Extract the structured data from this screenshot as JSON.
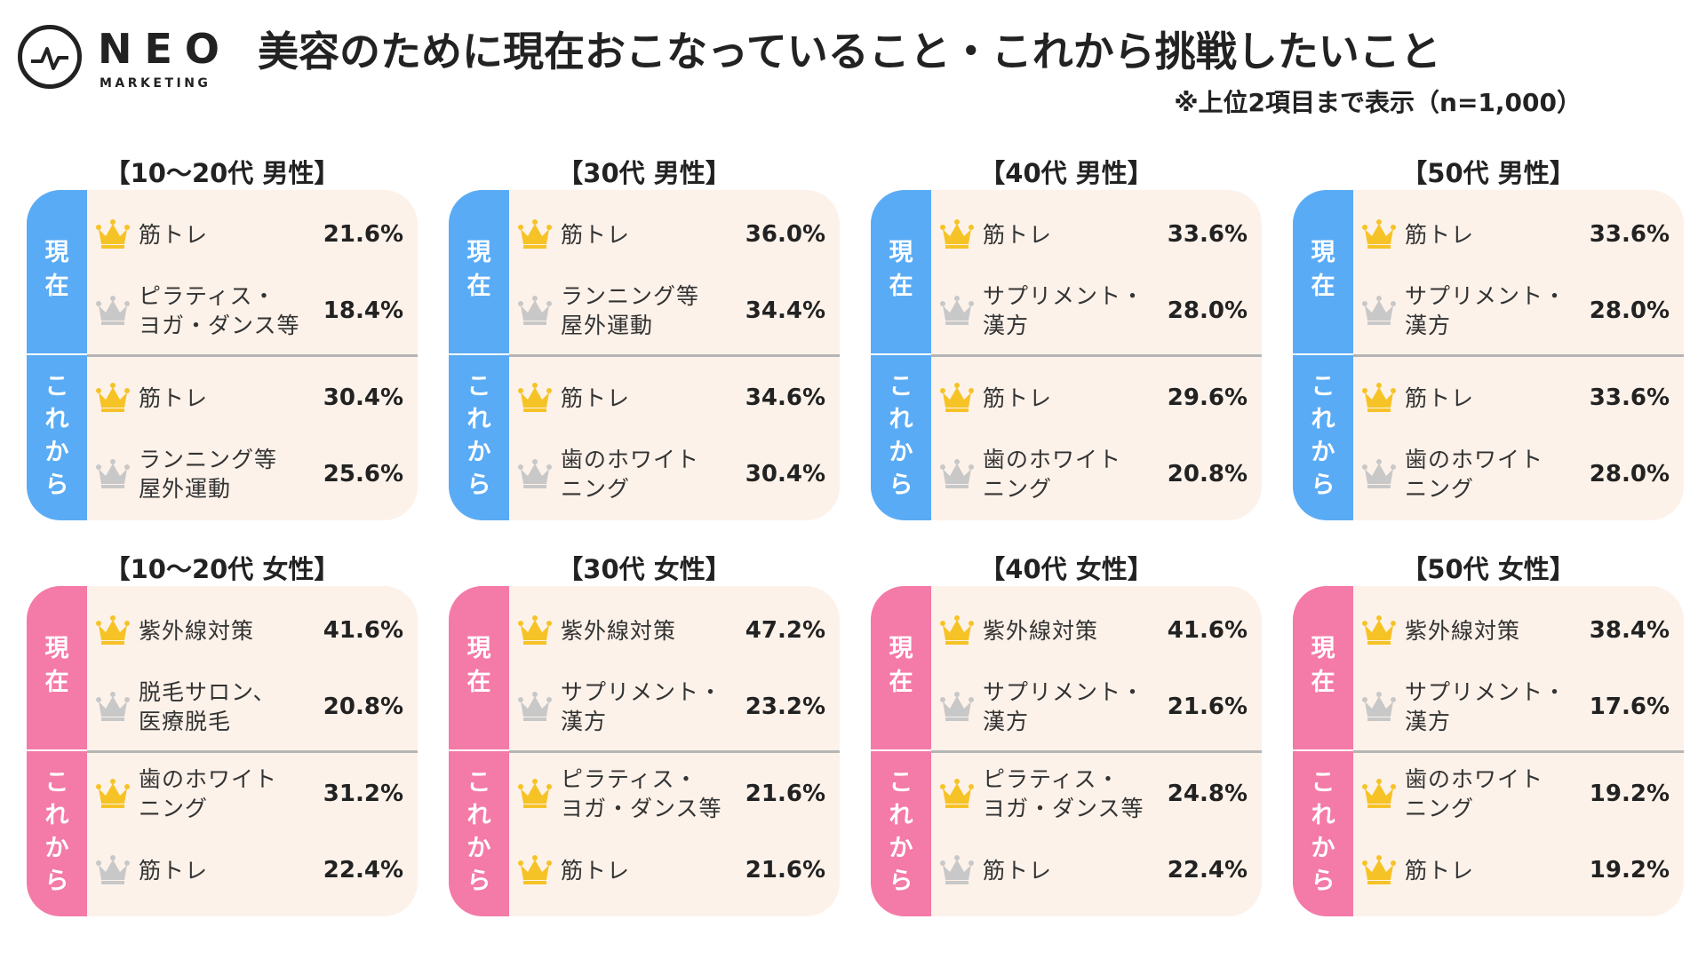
{
  "logo": {
    "main": "NEO",
    "sub": "MARKETING"
  },
  "title": "美容のために現在おこなっていること・これから挑戦したいこと",
  "note": "※上位2項目まで表示（n=1,000）",
  "labels": {
    "current": [
      "現",
      "在"
    ],
    "future": [
      "こ",
      "れ",
      "か",
      "ら"
    ]
  },
  "colors": {
    "male": "#5aabf5",
    "female": "#f47aa7",
    "card_bg": "#fdf2ea",
    "gold": "#f6c327",
    "silver": "#c8c8c8"
  },
  "chart_data": [
    {
      "type": "table",
      "title": "【10〜20代 男性】",
      "gender": "male",
      "current": [
        {
          "rank": 1,
          "item": "筋トレ",
          "value": "21.6%"
        },
        {
          "rank": 2,
          "item": "ピラティス・\nヨガ・ダンス等",
          "value": "18.4%"
        }
      ],
      "future": [
        {
          "rank": 1,
          "item": "筋トレ",
          "value": "30.4%"
        },
        {
          "rank": 2,
          "item": "ランニング等\n屋外運動",
          "value": "25.6%"
        }
      ]
    },
    {
      "type": "table",
      "title": "【30代 男性】",
      "gender": "male",
      "current": [
        {
          "rank": 1,
          "item": "筋トレ",
          "value": "36.0%"
        },
        {
          "rank": 2,
          "item": "ランニング等\n屋外運動",
          "value": "34.4%"
        }
      ],
      "future": [
        {
          "rank": 1,
          "item": "筋トレ",
          "value": "34.6%"
        },
        {
          "rank": 2,
          "item": "歯のホワイト\nニング",
          "value": "30.4%"
        }
      ]
    },
    {
      "type": "table",
      "title": "【40代 男性】",
      "gender": "male",
      "current": [
        {
          "rank": 1,
          "item": "筋トレ",
          "value": "33.6%"
        },
        {
          "rank": 2,
          "item": "サプリメント・\n漢方",
          "value": "28.0%"
        }
      ],
      "future": [
        {
          "rank": 1,
          "item": "筋トレ",
          "value": "29.6%"
        },
        {
          "rank": 2,
          "item": "歯のホワイト\nニング",
          "value": "20.8%"
        }
      ]
    },
    {
      "type": "table",
      "title": "【50代 男性】",
      "gender": "male",
      "current": [
        {
          "rank": 1,
          "item": "筋トレ",
          "value": "33.6%"
        },
        {
          "rank": 2,
          "item": "サプリメント・\n漢方",
          "value": "28.0%"
        }
      ],
      "future": [
        {
          "rank": 1,
          "item": "筋トレ",
          "value": "33.6%"
        },
        {
          "rank": 2,
          "item": "歯のホワイト\nニング",
          "value": "28.0%"
        }
      ]
    },
    {
      "type": "table",
      "title": "【10〜20代 女性】",
      "gender": "female",
      "current": [
        {
          "rank": 1,
          "item": "紫外線対策",
          "value": "41.6%"
        },
        {
          "rank": 2,
          "item": "脱毛サロン、\n医療脱毛",
          "value": "20.8%"
        }
      ],
      "future": [
        {
          "rank": 1,
          "item": "歯のホワイト\nニング",
          "value": "31.2%"
        },
        {
          "rank": 2,
          "item": "筋トレ",
          "value": "22.4%"
        }
      ]
    },
    {
      "type": "table",
      "title": "【30代 女性】",
      "gender": "female",
      "current": [
        {
          "rank": 1,
          "item": "紫外線対策",
          "value": "47.2%"
        },
        {
          "rank": 2,
          "item": "サプリメント・\n漢方",
          "value": "23.2%"
        }
      ],
      "future": [
        {
          "rank": 1,
          "item": "ピラティス・\nヨガ・ダンス等",
          "value": "21.6%"
        },
        {
          "rank": 1,
          "item": "筋トレ",
          "value": "21.6%"
        }
      ]
    },
    {
      "type": "table",
      "title": "【40代 女性】",
      "gender": "female",
      "current": [
        {
          "rank": 1,
          "item": "紫外線対策",
          "value": "41.6%"
        },
        {
          "rank": 2,
          "item": "サプリメント・\n漢方",
          "value": "21.6%"
        }
      ],
      "future": [
        {
          "rank": 1,
          "item": "ピラティス・\nヨガ・ダンス等",
          "value": "24.8%"
        },
        {
          "rank": 2,
          "item": "筋トレ",
          "value": "22.4%"
        }
      ]
    },
    {
      "type": "table",
      "title": "【50代 女性】",
      "gender": "female",
      "current": [
        {
          "rank": 1,
          "item": "紫外線対策",
          "value": "38.4%"
        },
        {
          "rank": 2,
          "item": "サプリメント・\n漢方",
          "value": "17.6%"
        }
      ],
      "future": [
        {
          "rank": 1,
          "item": "歯のホワイト\nニング",
          "value": "19.2%"
        },
        {
          "rank": 1,
          "item": "筋トレ",
          "value": "19.2%"
        }
      ]
    }
  ]
}
